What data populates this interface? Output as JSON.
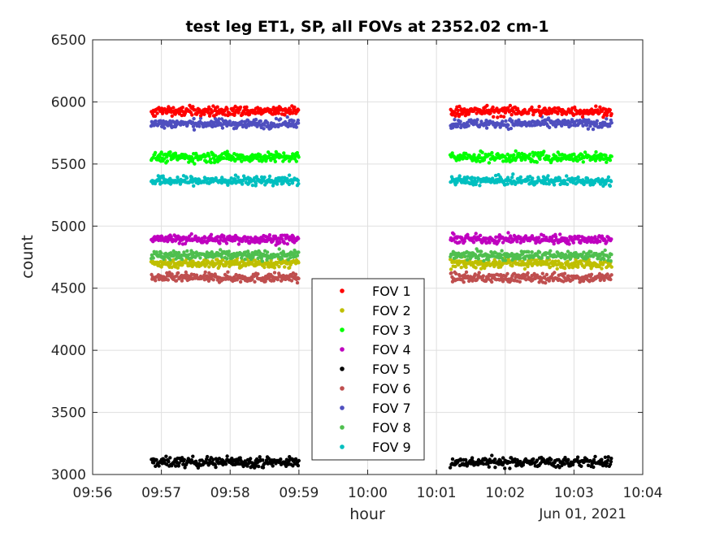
{
  "chart_data": {
    "type": "scatter",
    "title": "test leg ET1, SP, all FOVs at 2352.02 cm-1",
    "xlabel": "hour",
    "ylabel": "count",
    "date_label": "Jun 01, 2021",
    "x_ticks": [
      "09:56",
      "09:57",
      "09:58",
      "09:59",
      "10:00",
      "10:01",
      "10:02",
      "10:03",
      "10:04"
    ],
    "y_ticks": [
      3000,
      3500,
      4000,
      4500,
      5000,
      5500,
      6000,
      6500
    ],
    "xlim_minutes": [
      0,
      8
    ],
    "ylim": [
      3000,
      6500
    ],
    "grid": true,
    "legend_position": "center",
    "segments_minutes": [
      [
        0.85,
        3.0
      ],
      [
        5.2,
        7.55
      ]
    ],
    "series": [
      {
        "name": "FOV 1",
        "color": "#ff0000",
        "mean": 5925,
        "spread": 20
      },
      {
        "name": "FOV 2",
        "color": "#bfbf00",
        "mean": 4700,
        "spread": 18
      },
      {
        "name": "FOV 3",
        "color": "#00ff00",
        "mean": 5555,
        "spread": 20
      },
      {
        "name": "FOV 4",
        "color": "#bf00bf",
        "mean": 4895,
        "spread": 18
      },
      {
        "name": "FOV 5",
        "color": "#000000",
        "mean": 3100,
        "spread": 20
      },
      {
        "name": "FOV 6",
        "color": "#bf4f4f",
        "mean": 4585,
        "spread": 18
      },
      {
        "name": "FOV 7",
        "color": "#4f4fbf",
        "mean": 5825,
        "spread": 18
      },
      {
        "name": "FOV 8",
        "color": "#4fbf4f",
        "mean": 4765,
        "spread": 18
      },
      {
        "name": "FOV 9",
        "color": "#00bfbf",
        "mean": 5365,
        "spread": 18
      }
    ]
  }
}
